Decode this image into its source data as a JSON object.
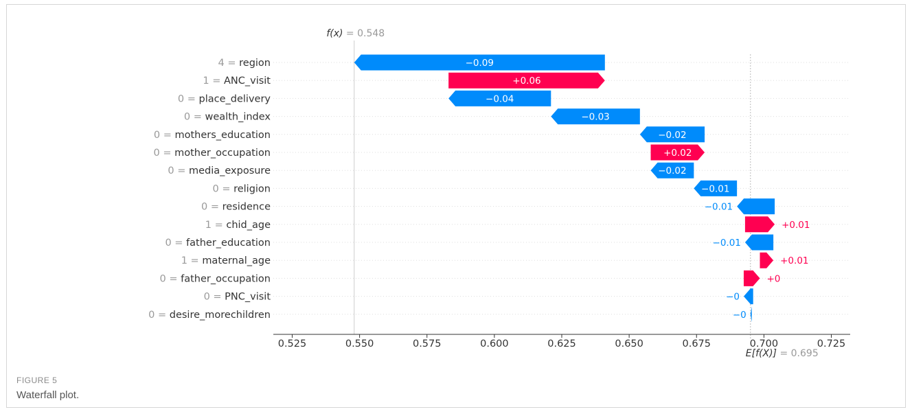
{
  "figure": {
    "label": "FIGURE 5",
    "caption": "Waterfall plot."
  },
  "chart_data": {
    "type": "waterfall",
    "fx_label": "f(x)",
    "fx_value": "0.548",
    "fx": 0.548,
    "ex_label": "E[f(X)]",
    "ex_value": "0.695",
    "ex": 0.695,
    "xlim": [
      0.518,
      0.732
    ],
    "xticks": [
      "0.525",
      "0.550",
      "0.575",
      "0.600",
      "0.625",
      "0.650",
      "0.675",
      "0.700",
      "0.725"
    ],
    "colors": {
      "negative": "#008bfb",
      "positive": "#ff0051",
      "text": "#333333",
      "muted": "#999999"
    },
    "features": [
      {
        "value": "4",
        "name": "region",
        "start": 0.641,
        "end": 0.548,
        "label": "−0.09",
        "sign": "neg"
      },
      {
        "value": "1",
        "name": "ANC_visit",
        "start": 0.583,
        "end": 0.641,
        "label": "+0.06",
        "sign": "pos"
      },
      {
        "value": "0",
        "name": "place_delivery",
        "start": 0.621,
        "end": 0.583,
        "label": "−0.04",
        "sign": "neg"
      },
      {
        "value": "0",
        "name": "wealth_index",
        "start": 0.654,
        "end": 0.621,
        "label": "−0.03",
        "sign": "neg"
      },
      {
        "value": "0",
        "name": "mothers_education",
        "start": 0.678,
        "end": 0.654,
        "label": "−0.02",
        "sign": "neg"
      },
      {
        "value": "0",
        "name": "mother_occupation",
        "start": 0.658,
        "end": 0.678,
        "label": "+0.02",
        "sign": "pos"
      },
      {
        "value": "0",
        "name": "media_exposure",
        "start": 0.674,
        "end": 0.658,
        "label": "−0.02",
        "sign": "neg"
      },
      {
        "value": "0",
        "name": "religion",
        "start": 0.69,
        "end": 0.674,
        "label": "−0.01",
        "sign": "neg"
      },
      {
        "value": "0",
        "name": "residence",
        "start": 0.704,
        "end": 0.69,
        "label": "−0.01",
        "sign": "neg"
      },
      {
        "value": "1",
        "name": "chid_age",
        "start": 0.693,
        "end": 0.704,
        "label": "+0.01",
        "sign": "pos"
      },
      {
        "value": "0",
        "name": "father_education",
        "start": 0.7035,
        "end": 0.693,
        "label": "−0.01",
        "sign": "neg"
      },
      {
        "value": "1",
        "name": "maternal_age",
        "start": 0.6985,
        "end": 0.7035,
        "label": "+0.01",
        "sign": "pos"
      },
      {
        "value": "0",
        "name": "father_occupation",
        "start": 0.6925,
        "end": 0.6985,
        "label": "+0",
        "sign": "pos"
      },
      {
        "value": "0",
        "name": "PNC_visit",
        "start": 0.696,
        "end": 0.6925,
        "label": "−0",
        "sign": "neg"
      },
      {
        "value": "0",
        "name": "desire_morechildren",
        "start": 0.6955,
        "end": 0.695,
        "label": "−0",
        "sign": "neg"
      }
    ]
  }
}
